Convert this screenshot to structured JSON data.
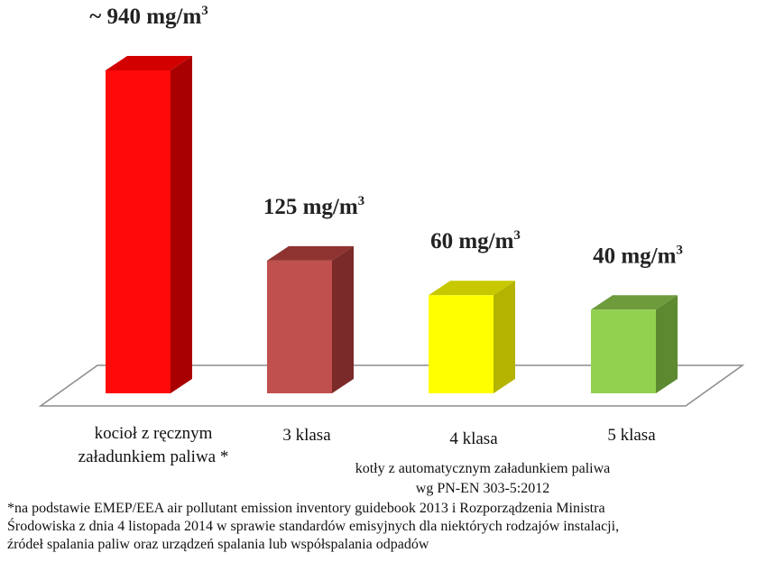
{
  "chart_data": {
    "type": "bar",
    "categories": [
      [
        "kocioł z ręcznym",
        "załadunkiem paliwa *"
      ],
      [
        "3 klasa"
      ],
      [
        "4 klasa"
      ],
      [
        "5 klasa"
      ]
    ],
    "values": [
      940,
      125,
      60,
      40
    ],
    "value_labels": [
      {
        "prefix": "~ 940 mg/m",
        "sup": "3"
      },
      {
        "prefix": "125 mg/m",
        "sup": "3"
      },
      {
        "prefix": "60 mg/m",
        "sup": "3"
      },
      {
        "prefix": "40 mg/m",
        "sup": "3"
      }
    ],
    "colors": [
      {
        "front": "#ff0a0a",
        "side": "#a80000",
        "top": "#d30000"
      },
      {
        "front": "#c0504d",
        "side": "#7a2a28",
        "top": "#8f3331"
      },
      {
        "front": "#ffff00",
        "side": "#b4b400",
        "top": "#c8c800"
      },
      {
        "front": "#92d050",
        "side": "#5d8a30",
        "top": "#6e9c3c"
      }
    ],
    "group_label": [
      "kotły z automatycznym załadunkiem paliwa",
      "wg PN-EN 303-5:2012"
    ],
    "axes": "none",
    "grid": false,
    "legend": "none",
    "floor_color": "#ffffff"
  },
  "footnote": [
    "*na podstawie EMEP/EEA air pollutant emission inventory guidebook 2013 i Rozporządzenia Ministra",
    " Środowiska z dnia 4 listopada 2014 w sprawie standardów emisyjnych dla  niektórych rodzajów instalacji,",
    "źródeł spalania paliw oraz urządzeń spalania lub współspalania odpadów"
  ]
}
